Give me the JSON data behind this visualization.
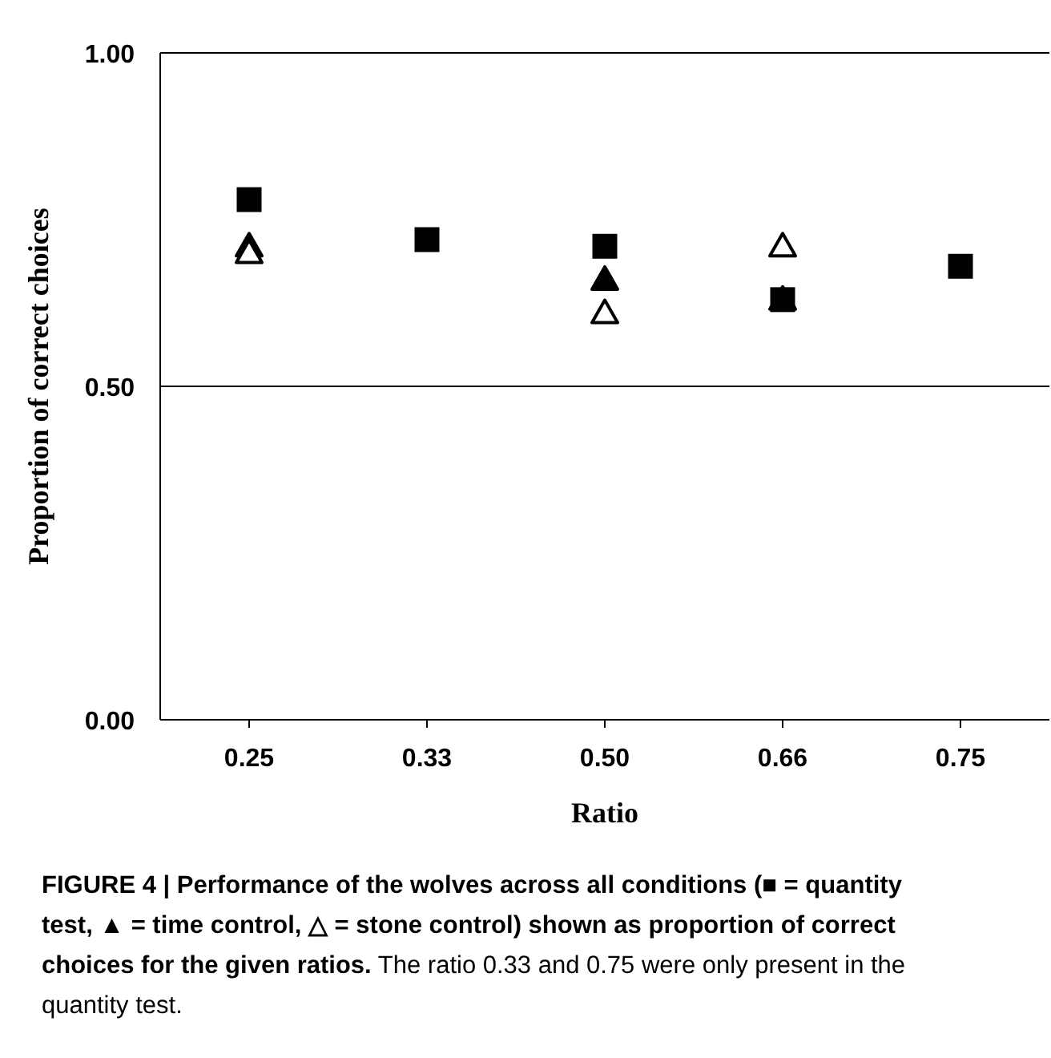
{
  "chart_data": {
    "type": "scatter",
    "title": "FIGURE 4 | Performance of the wolves across all conditions (■ = quantity test, ▲ = time control, △ = stone control) shown as proportion of correct choices for the given ratios.",
    "xlabel": "Ratio",
    "ylabel": "Proportion of correct choices",
    "annotations": [
      "The ratio 0.33 and 0.75 were only present in the quantity test."
    ],
    "categories": [
      "0.25",
      "0.33",
      "0.50",
      "0.66",
      "0.75"
    ],
    "series": [
      {
        "color": "#000000",
        "marker": "square",
        "values": [
          0.78,
          0.72,
          0.71,
          0.63,
          0.68
        ]
      },
      {
        "color": "#000000",
        "marker": "triangle",
        "values": [
          0.71,
          null,
          0.66,
          0.63,
          null
        ]
      },
      {
        "color": "#000000",
        "marker": "triangle-open",
        "values": [
          0.7,
          null,
          0.61,
          0.71,
          null
        ]
      }
    ],
    "ylim": [
      0,
      1
    ],
    "yticks": [
      {
        "value": 0,
        "label": "0.00"
      },
      {
        "value": 0.5,
        "label": "0.50"
      },
      {
        "value": 1,
        "label": "1.00"
      }
    ],
    "grid": "y"
  }
}
